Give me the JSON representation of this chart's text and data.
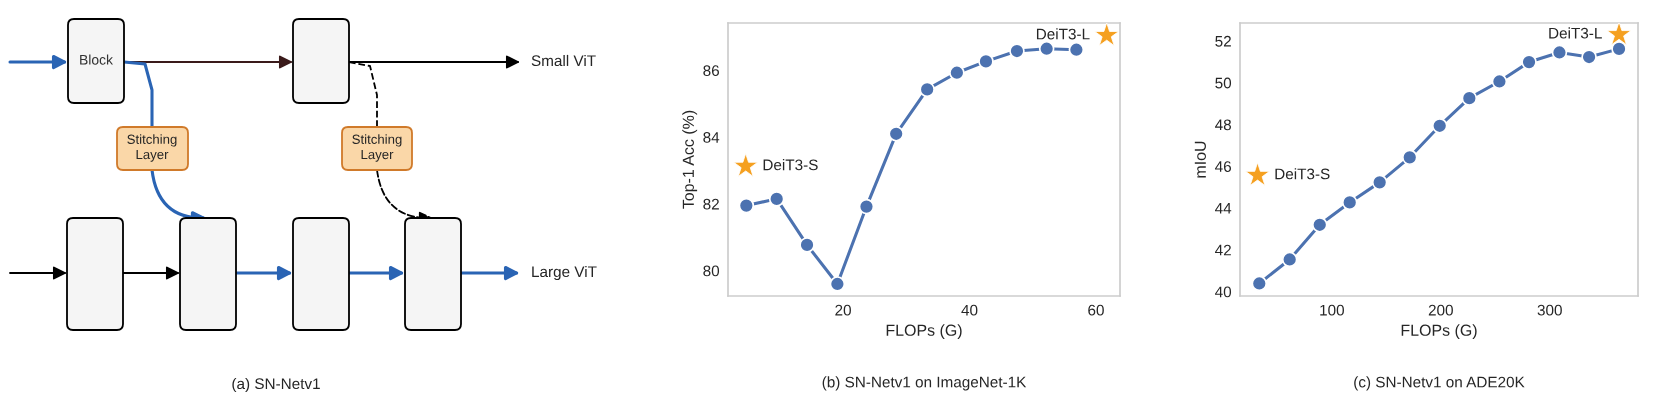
{
  "chart_data": [
    {
      "type": "other",
      "title": "(a) SN-Netv1",
      "annotations": [
        "Block",
        "Stitching\nLayer",
        "Stitching\nLayer",
        "Small ViT",
        "Large ViT"
      ]
    },
    {
      "type": "line",
      "title": "(b) SN-Netv1 on ImageNet-1K",
      "xlabel": "FLOPs (G)",
      "ylabel": "Top-1 Acc (%)",
      "xlim": [
        1.8,
        63.8
      ],
      "ylim": [
        79.24,
        87.42
      ],
      "xticks": [
        20,
        40,
        60
      ],
      "yticks": [
        80,
        82,
        84,
        86
      ],
      "series": [
        {
          "type": "line",
          "color": "#4c72b0",
          "marker": "circle",
          "x": [
            4.7,
            9.5,
            14.3,
            19.1,
            23.7,
            28.4,
            33.3,
            38.0,
            42.6,
            47.5,
            52.2,
            56.9
          ],
          "values": [
            81.95,
            82.15,
            80.77,
            79.6,
            81.92,
            84.1,
            85.43,
            85.93,
            86.27,
            86.58,
            86.65,
            86.62
          ]
        },
        {
          "type": "scatter",
          "color": "#f5a020",
          "marker": "star",
          "x": [
            4.6,
            61.7
          ],
          "values": [
            83.13,
            87.05
          ]
        }
      ],
      "annotations": [
        {
          "text": "DeiT3-S",
          "x": 4.6,
          "y": 83.13
        },
        {
          "text": "DeiT3-L",
          "x": 61.7,
          "y": 87.05
        }
      ]
    },
    {
      "type": "line",
      "title": "(c) SN-Netv1 on ADE20K",
      "xlabel": "FLOPs (G)",
      "ylabel": "mIoU",
      "xlim": [
        15.7,
        381
      ],
      "ylim": [
        39.79,
        52.86
      ],
      "xticks": [
        100,
        200,
        300
      ],
      "yticks": [
        40,
        42,
        44,
        46,
        48,
        50,
        52
      ],
      "series": [
        {
          "type": "line",
          "color": "#4c72b0",
          "marker": "circle",
          "x": [
            33.4,
            61.3,
            88.9,
            116.4,
            143.9,
            171.5,
            199.0,
            226.2,
            253.8,
            281.0,
            308.9,
            336.1,
            363.6
          ],
          "values": [
            40.39,
            41.54,
            43.2,
            44.27,
            45.23,
            46.43,
            47.94,
            49.26,
            50.06,
            50.99,
            51.45,
            51.23,
            51.62
          ]
        },
        {
          "type": "scatter",
          "color": "#f5a020",
          "marker": "star",
          "x": [
            31.8,
            363.6
          ],
          "values": [
            45.57,
            52.31
          ]
        }
      ],
      "annotations": [
        {
          "text": "DeiT3-S",
          "x": 31.8,
          "y": 45.57
        },
        {
          "text": "DeiT3-L",
          "x": 363.6,
          "y": 52.31
        }
      ]
    }
  ]
}
